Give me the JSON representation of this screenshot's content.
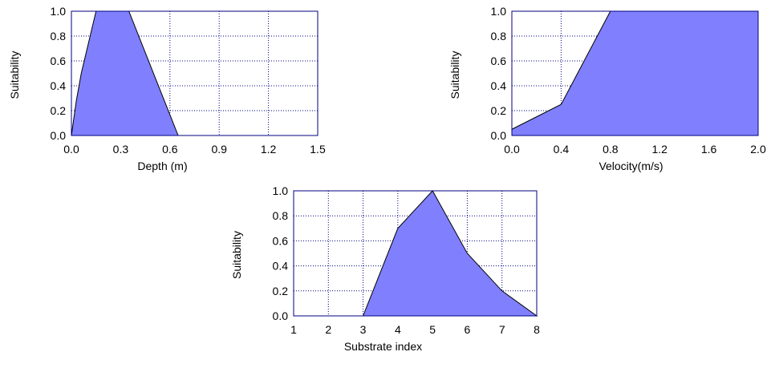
{
  "chart_data": [
    {
      "type": "area",
      "xlabel": "Depth (m)",
      "ylabel": "Suitability",
      "xlim": [
        0,
        1.5
      ],
      "ylim": [
        0,
        1
      ],
      "xticks": [
        "0.0",
        "0.3",
        "0.6",
        "0.9",
        "1.2",
        "1.5"
      ],
      "yticks": [
        "0.0",
        "0.2",
        "0.4",
        "0.6",
        "0.8",
        "1.0"
      ],
      "grid": true,
      "x": [
        0,
        0.03,
        0.06,
        0.15,
        0.35,
        0.65
      ],
      "y": [
        0,
        0.28,
        0.5,
        1.0,
        1.0,
        0
      ]
    },
    {
      "type": "area",
      "xlabel": "Velocity(m/s)",
      "ylabel": "Suitability",
      "xlim": [
        0,
        2.0
      ],
      "ylim": [
        0,
        1
      ],
      "xticks": [
        "0.0",
        "0.4",
        "0.8",
        "1.2",
        "1.6",
        "2.0"
      ],
      "yticks": [
        "0.0",
        "0.2",
        "0.4",
        "0.6",
        "0.8",
        "1.0"
      ],
      "grid": true,
      "x": [
        0,
        0.4,
        0.8,
        2.0
      ],
      "y": [
        0.05,
        0.25,
        1.0,
        1.0
      ]
    },
    {
      "type": "area",
      "xlabel": "Substrate index",
      "ylabel": "Suitability",
      "xlim": [
        1,
        8
      ],
      "ylim": [
        0,
        1
      ],
      "xticks": [
        "1",
        "2",
        "3",
        "4",
        "5",
        "6",
        "7",
        "8"
      ],
      "yticks": [
        "0.0",
        "0.2",
        "0.4",
        "0.6",
        "0.8",
        "1.0"
      ],
      "grid": true,
      "x": [
        3,
        4,
        5,
        6,
        7,
        8
      ],
      "y": [
        0,
        0.7,
        1.0,
        0.5,
        0.2,
        0
      ]
    }
  ]
}
